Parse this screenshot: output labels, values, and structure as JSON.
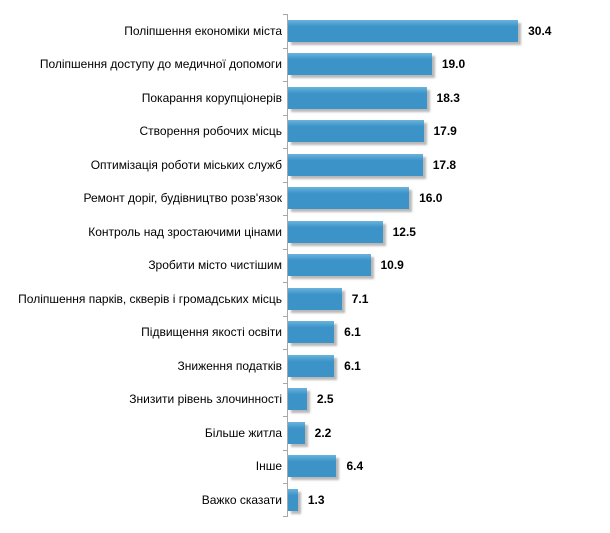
{
  "chart_data": {
    "type": "bar",
    "orientation": "horizontal",
    "title": "",
    "xlabel": "",
    "ylabel": "",
    "xlim": [
      0,
      42.5
    ],
    "grid": "off",
    "legend": "none",
    "value_labels": "outside-end, one decimal",
    "categories": [
      "Поліпшення економіки міста",
      "Поліпшення доступу до медичної допомоги",
      "Покарання корупціонерів",
      "Створення робочих місць",
      "Оптимізація роботи міських служб",
      "Ремонт доріг, будівництво розв'язок",
      "Контроль над зростаючими цінами",
      "Зробити місто чистішим",
      "Поліпшення парків, скверів і громадських місць",
      "Підвищення якості освіти",
      "Зниження податків",
      "Знизити рівень злочинності",
      "Більше житла",
      "Інше",
      "Важко сказати"
    ],
    "values": [
      30.4,
      19.0,
      18.3,
      17.9,
      17.8,
      16.0,
      12.5,
      10.9,
      7.1,
      6.1,
      6.1,
      2.5,
      2.2,
      6.4,
      1.3
    ],
    "colors": {
      "bar": "#3B93C8",
      "bar_highlight": "#6AB4DC",
      "axis": "#A8A8A8",
      "text": "#000000",
      "background": "#FFFFFF"
    }
  }
}
